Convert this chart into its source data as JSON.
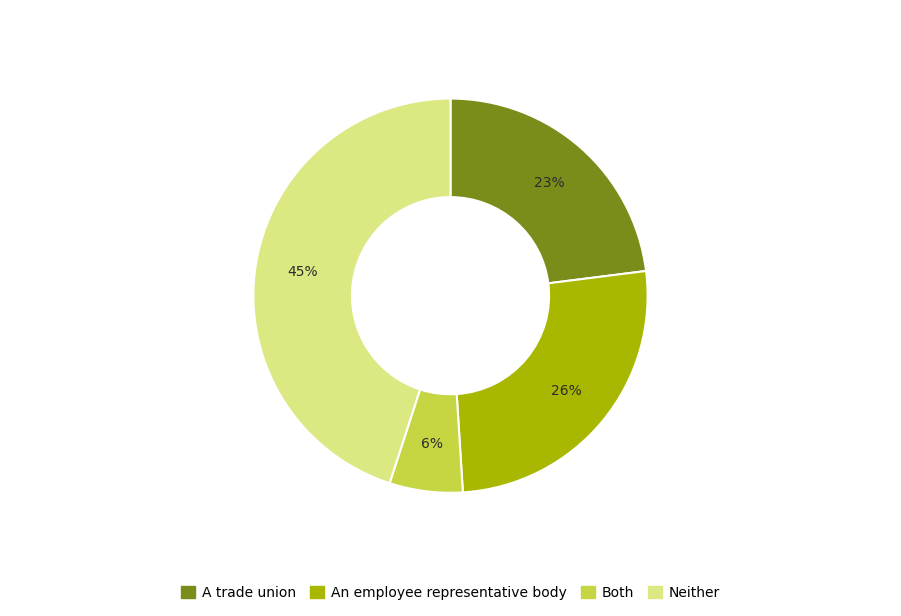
{
  "labels": [
    "A trade union",
    "An employee representative body",
    "Both",
    "Neither"
  ],
  "values": [
    23,
    26,
    6,
    45
  ],
  "colors": [
    "#7a8c1a",
    "#a8b800",
    "#c5d642",
    "#dce882"
  ],
  "percentages": [
    "23%",
    "26%",
    "6%",
    "45%"
  ],
  "legend_labels": [
    "A trade union",
    "An employee representative body",
    "Both",
    "Neither"
  ],
  "background_color": "#ffffff",
  "label_fontsize": 10,
  "legend_fontsize": 10,
  "wedge_edge_color": "#ffffff",
  "donut_hole_ratio": 0.5
}
